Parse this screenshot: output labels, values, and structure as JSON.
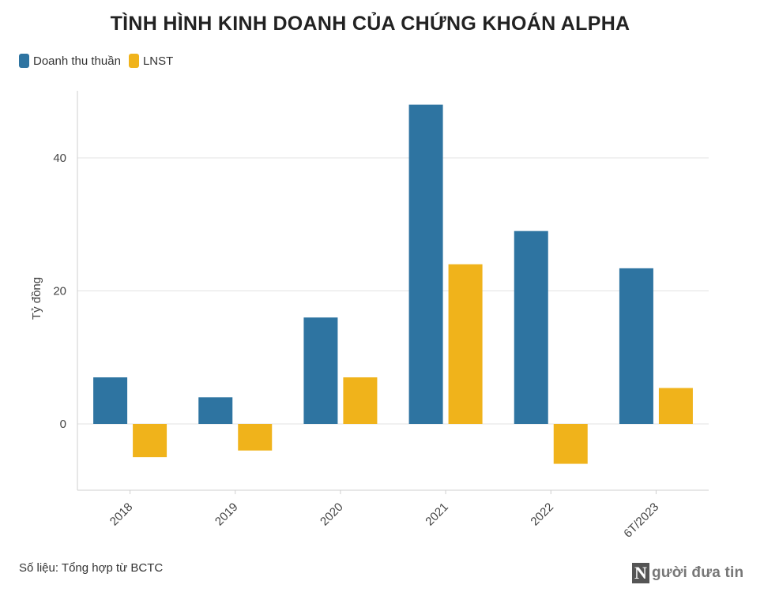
{
  "chart_data": {
    "type": "bar",
    "title": "TÌNH HÌNH KINH DOANH CỦA CHỨNG KHOÁN ALPHA",
    "ylabel": "Tỷ đồng",
    "xlabel": "",
    "categories": [
      "2018",
      "2019",
      "2020",
      "2021",
      "2022",
      "6T/2023"
    ],
    "series": [
      {
        "name": "Doanh thu thuần",
        "color": "#2e74a1",
        "values": [
          7,
          4,
          16,
          48,
          29,
          23.4
        ]
      },
      {
        "name": "LNST",
        "color": "#f0b31b",
        "values": [
          -5,
          -4,
          7,
          24,
          -6,
          5.4
        ]
      }
    ],
    "ylim": [
      -10,
      50
    ],
    "yticks": [
      0,
      20,
      40
    ],
    "grid": true,
    "legend": "top-left"
  },
  "source": "Số liệu: Tổng hợp từ BCTC",
  "logo": {
    "letter": "N",
    "text": "gười đưa tin"
  }
}
